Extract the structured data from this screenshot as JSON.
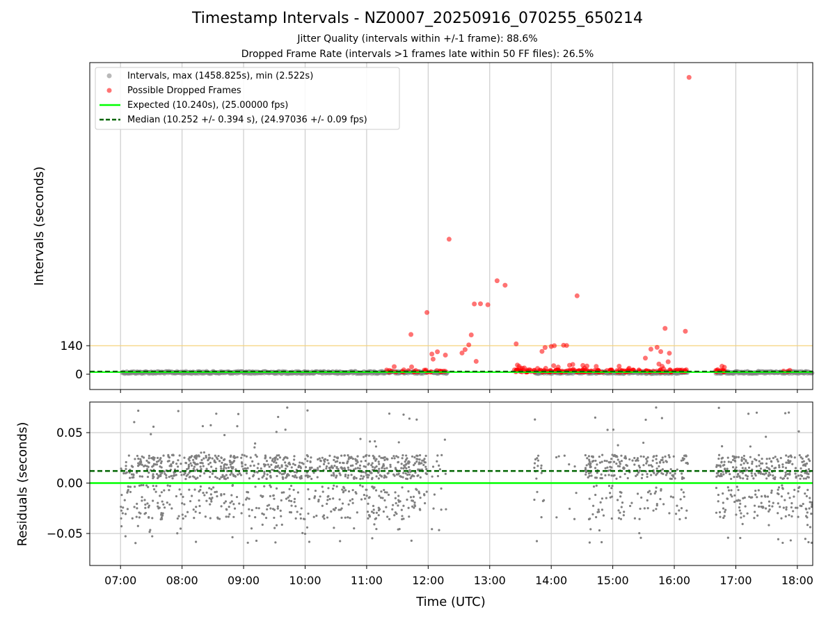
{
  "chart_data": {
    "type": "scatter",
    "title": "Timestamp Intervals - NZ0007_20250916_070255_650214",
    "subtitle_lines": [
      "Jitter Quality (intervals within +/-1 frame): 88.6%",
      "Dropped Frame Rate (intervals >1 frames late within 50 FF files): 26.5%"
    ],
    "xlabel": "Time (UTC)",
    "x_ticks": [
      "07:00",
      "08:00",
      "09:00",
      "10:00",
      "11:00",
      "12:00",
      "13:00",
      "14:00",
      "15:00",
      "16:00",
      "17:00",
      "18:00"
    ],
    "xlim_hours": [
      6.5,
      18.25
    ],
    "grid": true,
    "colors": {
      "intervals": "#808080",
      "dropped": "#ff0000",
      "expected": "#00ff00",
      "median": "#006400",
      "threshold": "#f5d27a"
    },
    "panels": [
      {
        "name": "intervals",
        "ylabel": "Intervals (seconds)",
        "y_ticks": [
          "0",
          "140"
        ],
        "y_tick_values": [
          0,
          140
        ],
        "ylim": [
          -70,
          1500
        ],
        "threshold_value": 140,
        "legend_position": "top-left",
        "legend": [
          "Intervals, max (1458.825s), min (2.522s)",
          "Possible Dropped Frames",
          "Expected (10.240s), (25.00000 fps)",
          "Median (10.252 +/- 0.394 s), (24.97036 +/- 0.09 fps)"
        ],
        "expected_value": 10.24,
        "median_value": 10.252,
        "gaps_hours": [
          [
            11.98,
            12.06
          ],
          [
            12.32,
            13.72
          ],
          [
            16.22,
            16.67
          ]
        ],
        "dropped_points": [
          [
            11.72,
            195
          ],
          [
            11.98,
            303
          ],
          [
            12.34,
            663
          ],
          [
            12.06,
            99
          ],
          [
            12.08,
            74
          ],
          [
            12.15,
            110
          ],
          [
            12.28,
            94
          ],
          [
            12.55,
            104
          ],
          [
            12.6,
            121
          ],
          [
            12.66,
            144
          ],
          [
            12.7,
            193
          ],
          [
            12.75,
            345
          ],
          [
            12.85,
            346
          ],
          [
            12.97,
            341
          ],
          [
            12.78,
            63
          ],
          [
            13.12,
            459
          ],
          [
            13.25,
            437
          ],
          [
            13.43,
            149
          ],
          [
            14.42,
            385
          ],
          [
            14.05,
            140
          ],
          [
            14.2,
            142
          ],
          [
            14.25,
            141
          ],
          [
            13.85,
            112
          ],
          [
            13.9,
            131
          ],
          [
            14.0,
            136
          ],
          [
            15.53,
            79
          ],
          [
            15.62,
            123
          ],
          [
            15.72,
            132
          ],
          [
            15.78,
            111
          ],
          [
            15.85,
            225
          ],
          [
            15.9,
            61
          ],
          [
            15.92,
            103
          ],
          [
            16.18,
            211
          ],
          [
            16.24,
            1458
          ],
          [
            14.35,
            48
          ],
          [
            15.75,
            50
          ],
          [
            13.45,
            45
          ]
        ]
      },
      {
        "name": "residuals",
        "ylabel": "Residuals (seconds)",
        "y_ticks": [
          "0.05",
          "0.00",
          "−0.05"
        ],
        "y_tick_values": [
          0.05,
          0.0,
          -0.05
        ],
        "ylim": [
          -0.08,
          0.08
        ],
        "expected_value": 0.0,
        "median_value": 0.012
      }
    ]
  }
}
